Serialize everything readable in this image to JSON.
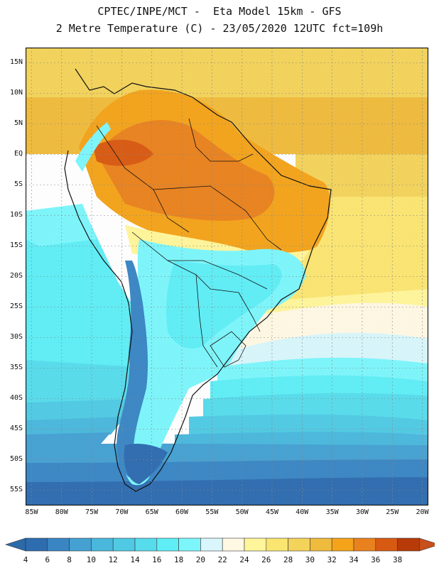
{
  "header": {
    "line1": "CPTEC/INPE/MCT -  Eta Model 15km - GFS",
    "line2": "2 Metre Temperature (C) - 23/05/2020 12UTC fct=109h"
  },
  "map": {
    "lat_labels": [
      "15N",
      "10N",
      "5N",
      "EQ",
      "5S",
      "10S",
      "15S",
      "20S",
      "25S",
      "30S",
      "35S",
      "40S",
      "45S",
      "50S",
      "55S"
    ],
    "lon_labels": [
      "85W",
      "80W",
      "75W",
      "70W",
      "65W",
      "60W",
      "55W",
      "50W",
      "45W",
      "40W",
      "35W",
      "30W",
      "25W",
      "20W"
    ],
    "lat_range": [
      17.5,
      -57.5
    ],
    "lon_range": [
      -86,
      -19
    ],
    "colors": {
      "c4": "#2e6cb0",
      "c6": "#3a86c4",
      "c8": "#45a1d2",
      "c10": "#4ab8dc",
      "c12": "#50cae4",
      "c14": "#57dcec",
      "c16": "#5feef6",
      "c18": "#7cf6fb",
      "c20": "#d8f6fb",
      "c22": "#fff8e3",
      "c24": "#fff59a",
      "c26": "#fbe571",
      "c28": "#f3d35a",
      "c30": "#efbb3c",
      "c32": "#f4a31a",
      "c34": "#e9821e",
      "c36": "#d85a12",
      "c38": "#b83a08"
    }
  },
  "colorbar": {
    "labels": [
      "4",
      "6",
      "8",
      "10",
      "12",
      "14",
      "16",
      "18",
      "20",
      "22",
      "24",
      "26",
      "28",
      "30",
      "32",
      "34",
      "36",
      "38"
    ],
    "colors": [
      "#2e6cb0",
      "#3a86c4",
      "#45a1d2",
      "#4ab8dc",
      "#50cae4",
      "#57dcec",
      "#5feef6",
      "#7cf6fb",
      "#d8f6fb",
      "#fff8e3",
      "#fff59a",
      "#fbe571",
      "#f3d35a",
      "#efbb3c",
      "#f4a31a",
      "#e9821e",
      "#d85a12",
      "#b83a08"
    ],
    "under_color": "#2b6aa8",
    "over_color": "#c8501a"
  }
}
